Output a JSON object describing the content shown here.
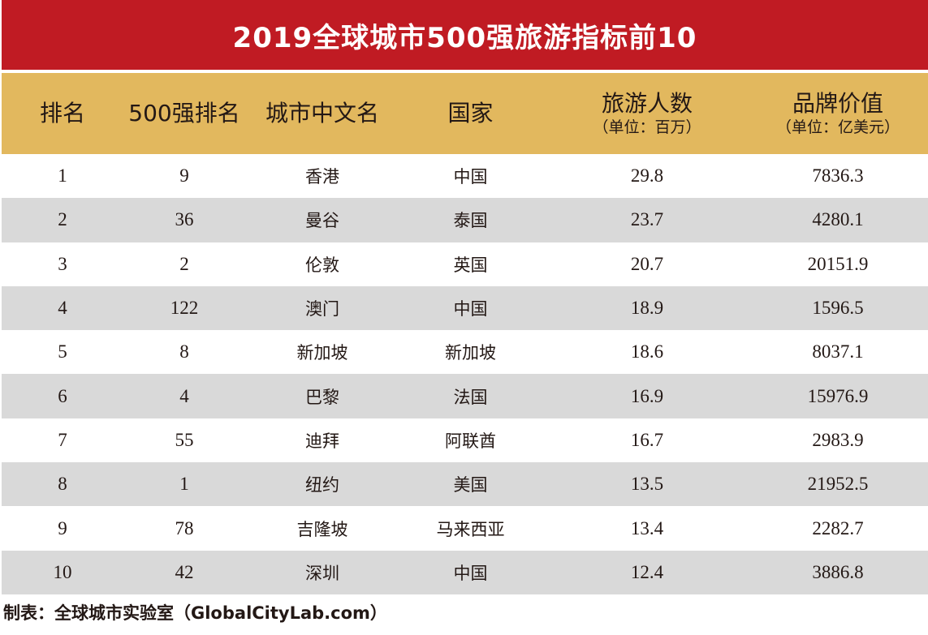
{
  "title": "2019全球城市500强旅游指标前10",
  "header": {
    "rank": "排名",
    "rank500": "500强排名",
    "city": "城市中文名",
    "country": "国家",
    "tourists": "旅游人数",
    "tourists_unit": "（单位：百万）",
    "brand_value": "品牌价值",
    "brand_value_unit": "（单位：亿美元）"
  },
  "rows": [
    {
      "rank": "1",
      "rank500": "9",
      "city": "香港",
      "country": "中国",
      "tourists": "29.8",
      "brand_value": "7836.3"
    },
    {
      "rank": "2",
      "rank500": "36",
      "city": "曼谷",
      "country": "泰国",
      "tourists": "23.7",
      "brand_value": "4280.1"
    },
    {
      "rank": "3",
      "rank500": "2",
      "city": "伦敦",
      "country": "英国",
      "tourists": "20.7",
      "brand_value": "20151.9"
    },
    {
      "rank": "4",
      "rank500": "122",
      "city": "澳门",
      "country": "中国",
      "tourists": "18.9",
      "brand_value": "1596.5"
    },
    {
      "rank": "5",
      "rank500": "8",
      "city": "新加坡",
      "country": "新加坡",
      "tourists": "18.6",
      "brand_value": "8037.1"
    },
    {
      "rank": "6",
      "rank500": "4",
      "city": "巴黎",
      "country": "法国",
      "tourists": "16.9",
      "brand_value": "15976.9"
    },
    {
      "rank": "7",
      "rank500": "55",
      "city": "迪拜",
      "country": "阿联酋",
      "tourists": "16.7",
      "brand_value": "2983.9"
    },
    {
      "rank": "8",
      "rank500": "1",
      "city": "纽约",
      "country": "美国",
      "tourists": "13.5",
      "brand_value": "21952.5"
    },
    {
      "rank": "9",
      "rank500": "78",
      "city": "吉隆坡",
      "country": "马来西亚",
      "tourists": "13.4",
      "brand_value": "2282.7"
    },
    {
      "rank": "10",
      "rank500": "42",
      "city": "深圳",
      "country": "中国",
      "tourists": "12.4",
      "brand_value": "3886.8"
    }
  ],
  "footer": "制表：全球城市实验室（GlobalCityLab.com）",
  "colors": {
    "title_bg": "#c01b23",
    "header_bg": "#e2b85e",
    "shaded_row_bg": "#d9d9d9"
  }
}
